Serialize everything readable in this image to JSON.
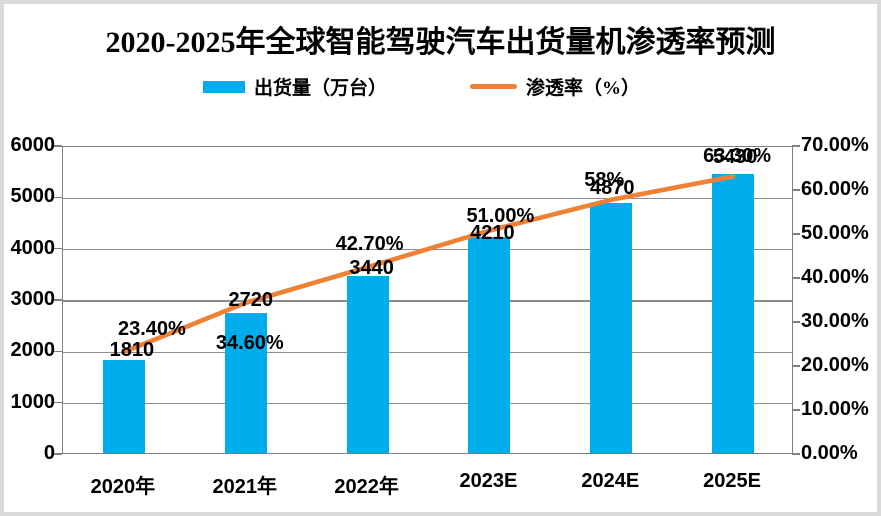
{
  "title": "2020-2025年全球智能驾驶汽车出货量机渗透率预测",
  "legend": {
    "bar_label": "出货量（万台）",
    "line_label": "渗透率（%）"
  },
  "colors": {
    "bar": "#00ADEC",
    "line": "#EE8133",
    "grid": "#8c8c8c",
    "axis_border": "#7f7f7f",
    "frame_border": "#d9d9d9",
    "text": "#000000"
  },
  "chart_data": {
    "type": "bar+line combo",
    "title": "2020-2025年全球智能驾驶汽车出货量机渗透率预测",
    "categories": [
      "2020年",
      "2021年",
      "2022年",
      "2023E",
      "2024E",
      "2025E"
    ],
    "series": [
      {
        "name": "出货量（万台）",
        "type": "bar",
        "axis": "left",
        "color": "#00ADEC",
        "values": [
          1810,
          2720,
          3440,
          4210,
          4870,
          5430
        ],
        "labels": [
          "1810",
          "2720",
          "3440",
          "4210",
          "4870",
          "5430"
        ]
      },
      {
        "name": "渗透率（%）",
        "type": "line",
        "axis": "right",
        "color": "#EE8133",
        "values": [
          23.4,
          34.6,
          42.7,
          51.0,
          58,
          63.3
        ],
        "labels": [
          "23.40%",
          "34.60%",
          "42.70%",
          "51.00%",
          "58%",
          "63.30%"
        ]
      }
    ],
    "left_axis": {
      "min": 0,
      "max": 6000,
      "step": 1000,
      "tick_labels": [
        "0",
        "1000",
        "2000",
        "3000",
        "4000",
        "5000",
        "6000"
      ]
    },
    "right_axis": {
      "min": 0,
      "max": 70,
      "step": 10,
      "tick_labels": [
        "0.00%",
        "10.00%",
        "20.00%",
        "30.00%",
        "40.00%",
        "50.00%",
        "60.00%",
        "70.00%"
      ]
    },
    "grid": true,
    "legend_position": "top"
  }
}
